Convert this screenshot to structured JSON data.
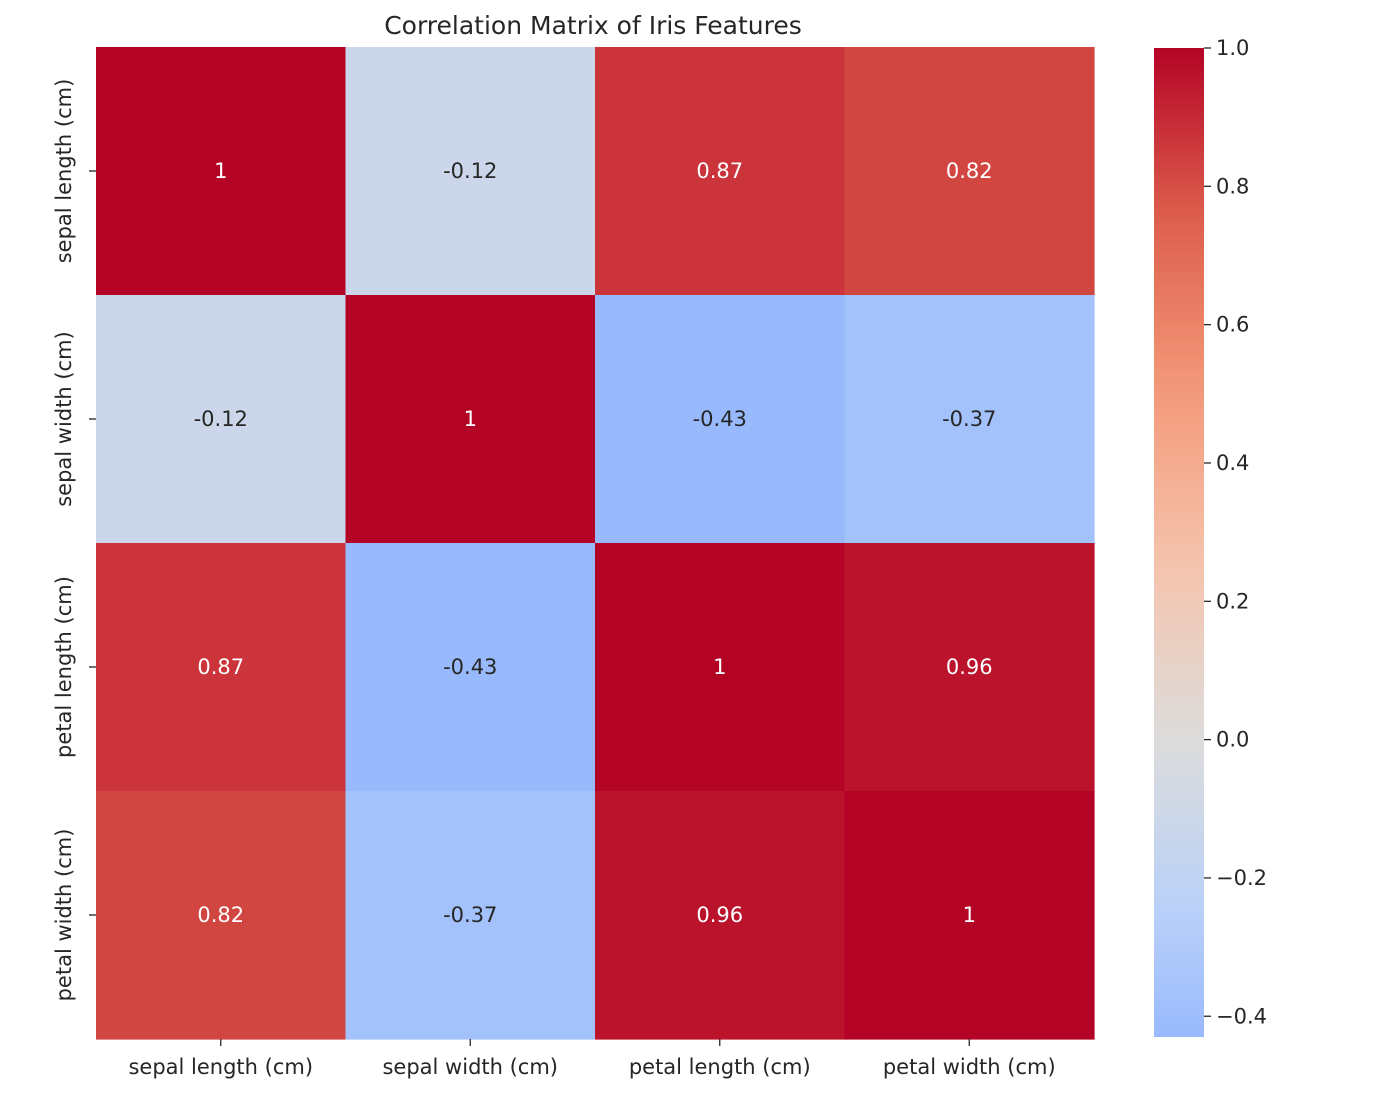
{
  "chart_data": {
    "type": "heatmap",
    "title": "Correlation Matrix of Iris Features",
    "xlabel": "",
    "ylabel": "",
    "categories_x": [
      "sepal length (cm)",
      "sepal width (cm)",
      "petal length (cm)",
      "petal width (cm)"
    ],
    "categories_y": [
      "sepal length (cm)",
      "sepal width (cm)",
      "petal length (cm)",
      "petal width (cm)"
    ],
    "values": [
      [
        1.0,
        -0.12,
        0.87,
        0.82
      ],
      [
        -0.12,
        1.0,
        -0.43,
        -0.37
      ],
      [
        0.87,
        -0.43,
        1.0,
        0.96
      ],
      [
        0.82,
        -0.37,
        0.96,
        1.0
      ]
    ],
    "annotations": [
      [
        "1",
        "-0.12",
        "0.87",
        "0.82"
      ],
      [
        "-0.12",
        "1",
        "-0.43",
        "-0.37"
      ],
      [
        "0.87",
        "-0.43",
        "1",
        "0.96"
      ],
      [
        "0.82",
        "-0.37",
        "0.96",
        "1"
      ]
    ],
    "colormap": "coolwarm",
    "colorbar": {
      "range": [
        -0.43,
        1.0
      ],
      "ticks": [
        -0.4,
        -0.2,
        0.0,
        0.2,
        0.4,
        0.6,
        0.8,
        1.0
      ],
      "tick_labels": [
        "−0.4",
        "−0.2",
        "0.0",
        "0.2",
        "0.4",
        "0.6",
        "0.8",
        "1.0"
      ]
    },
    "colors": {
      "low": "#9bbcff",
      "mid": "#dddcdc",
      "high": "#b40426",
      "text_dark": "#262626",
      "text_light": "#ffffff"
    }
  }
}
